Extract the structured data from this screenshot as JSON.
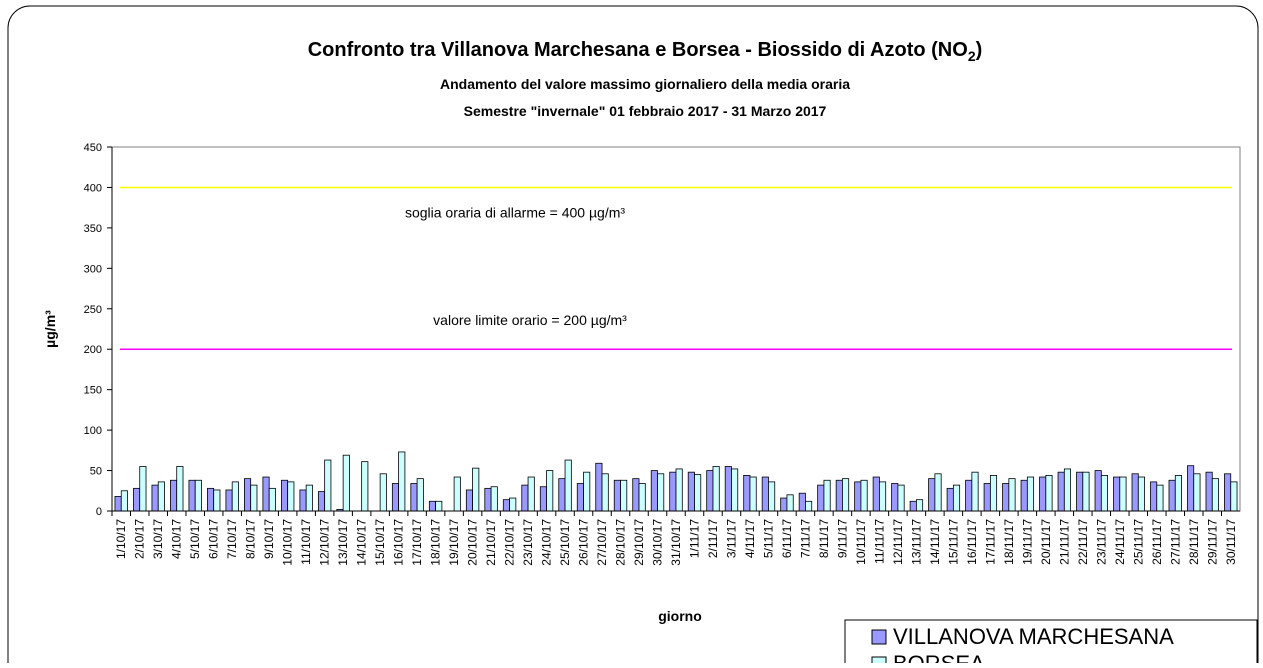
{
  "chart_data": {
    "type": "bar",
    "title": [
      "Confronto tra Villanova Marchesana e Borsea - Biossido di Azoto (NO",
      "2",
      ")"
    ],
    "subtitle": [
      "Andamento del valore massimo giornaliero della media oraria",
      "Semestre \"invernale\" 01 febbraio 2017 - 31 Marzo 2017"
    ],
    "x_label": "giorno",
    "y_label": "µg/m³",
    "categories": [
      "1/10/17",
      "2/10/17",
      "3/10/17",
      "4/10/17",
      "5/10/17",
      "6/10/17",
      "7/10/17",
      "8/10/17",
      "9/10/17",
      "10/10/17",
      "11/10/17",
      "12/10/17",
      "13/10/17",
      "14/10/17",
      "15/10/17",
      "16/10/17",
      "17/10/17",
      "18/10/17",
      "19/10/17",
      "20/10/17",
      "21/10/17",
      "22/10/17",
      "23/10/17",
      "24/10/17",
      "25/10/17",
      "26/10/17",
      "27/10/17",
      "28/10/17",
      "29/10/17",
      "30/10/17",
      "31/10/17",
      "1/11/17",
      "2/11/17",
      "3/11/17",
      "4/11/17",
      "5/11/17",
      "6/11/17",
      "7/11/17",
      "8/11/17",
      "9/11/17",
      "10/11/17",
      "11/11/17",
      "12/11/17",
      "13/11/17",
      "14/11/17",
      "15/11/17",
      "16/11/17",
      "17/11/17",
      "18/11/17",
      "19/11/17",
      "20/11/17",
      "21/11/17",
      "22/11/17",
      "23/11/17",
      "24/11/17",
      "25/11/17",
      "26/11/17",
      "27/11/17",
      "28/11/17",
      "29/11/17",
      "30/11/17"
    ],
    "series": [
      {
        "name": "VILLANOVA MARCHESANA",
        "color": "#9999ff",
        "values": [
          18,
          28,
          32,
          38,
          38,
          28,
          26,
          40,
          42,
          38,
          26,
          24,
          2,
          null,
          null,
          34,
          34,
          12,
          null,
          26,
          28,
          14,
          32,
          30,
          40,
          34,
          59,
          38,
          40,
          50,
          48,
          48,
          50,
          55,
          44,
          42,
          16,
          22,
          32,
          38,
          36,
          42,
          34,
          12,
          40,
          28,
          38,
          34,
          34,
          38,
          42,
          48,
          48,
          50,
          42,
          46,
          36,
          38,
          56,
          48,
          46
        ]
      },
      {
        "name": "BORSEA",
        "color": "#ccffff",
        "values": [
          25,
          55,
          36,
          55,
          38,
          26,
          36,
          32,
          28,
          36,
          32,
          63,
          69,
          61,
          46,
          73,
          40,
          12,
          42,
          53,
          30,
          16,
          42,
          50,
          63,
          48,
          46,
          38,
          34,
          46,
          52,
          45,
          55,
          52,
          42,
          36,
          20,
          12,
          38,
          40,
          38,
          36,
          32,
          14,
          46,
          32,
          48,
          44,
          40,
          42,
          44,
          52,
          48,
          44,
          42,
          42,
          32,
          44,
          46,
          40,
          36
        ]
      }
    ],
    "reference_lines": [
      {
        "value": 400,
        "label": "soglia oraria di allarme = 400 µg/m³",
        "color": "#ffff00"
      },
      {
        "value": 200,
        "label": "valore limite orario = 200 µg/m³",
        "color": "#ff00ff"
      }
    ],
    "ylim": [
      0,
      450
    ],
    "yticks": [
      0,
      50,
      100,
      150,
      200,
      250,
      300,
      350,
      400,
      450
    ],
    "legend": "bottom-right"
  }
}
